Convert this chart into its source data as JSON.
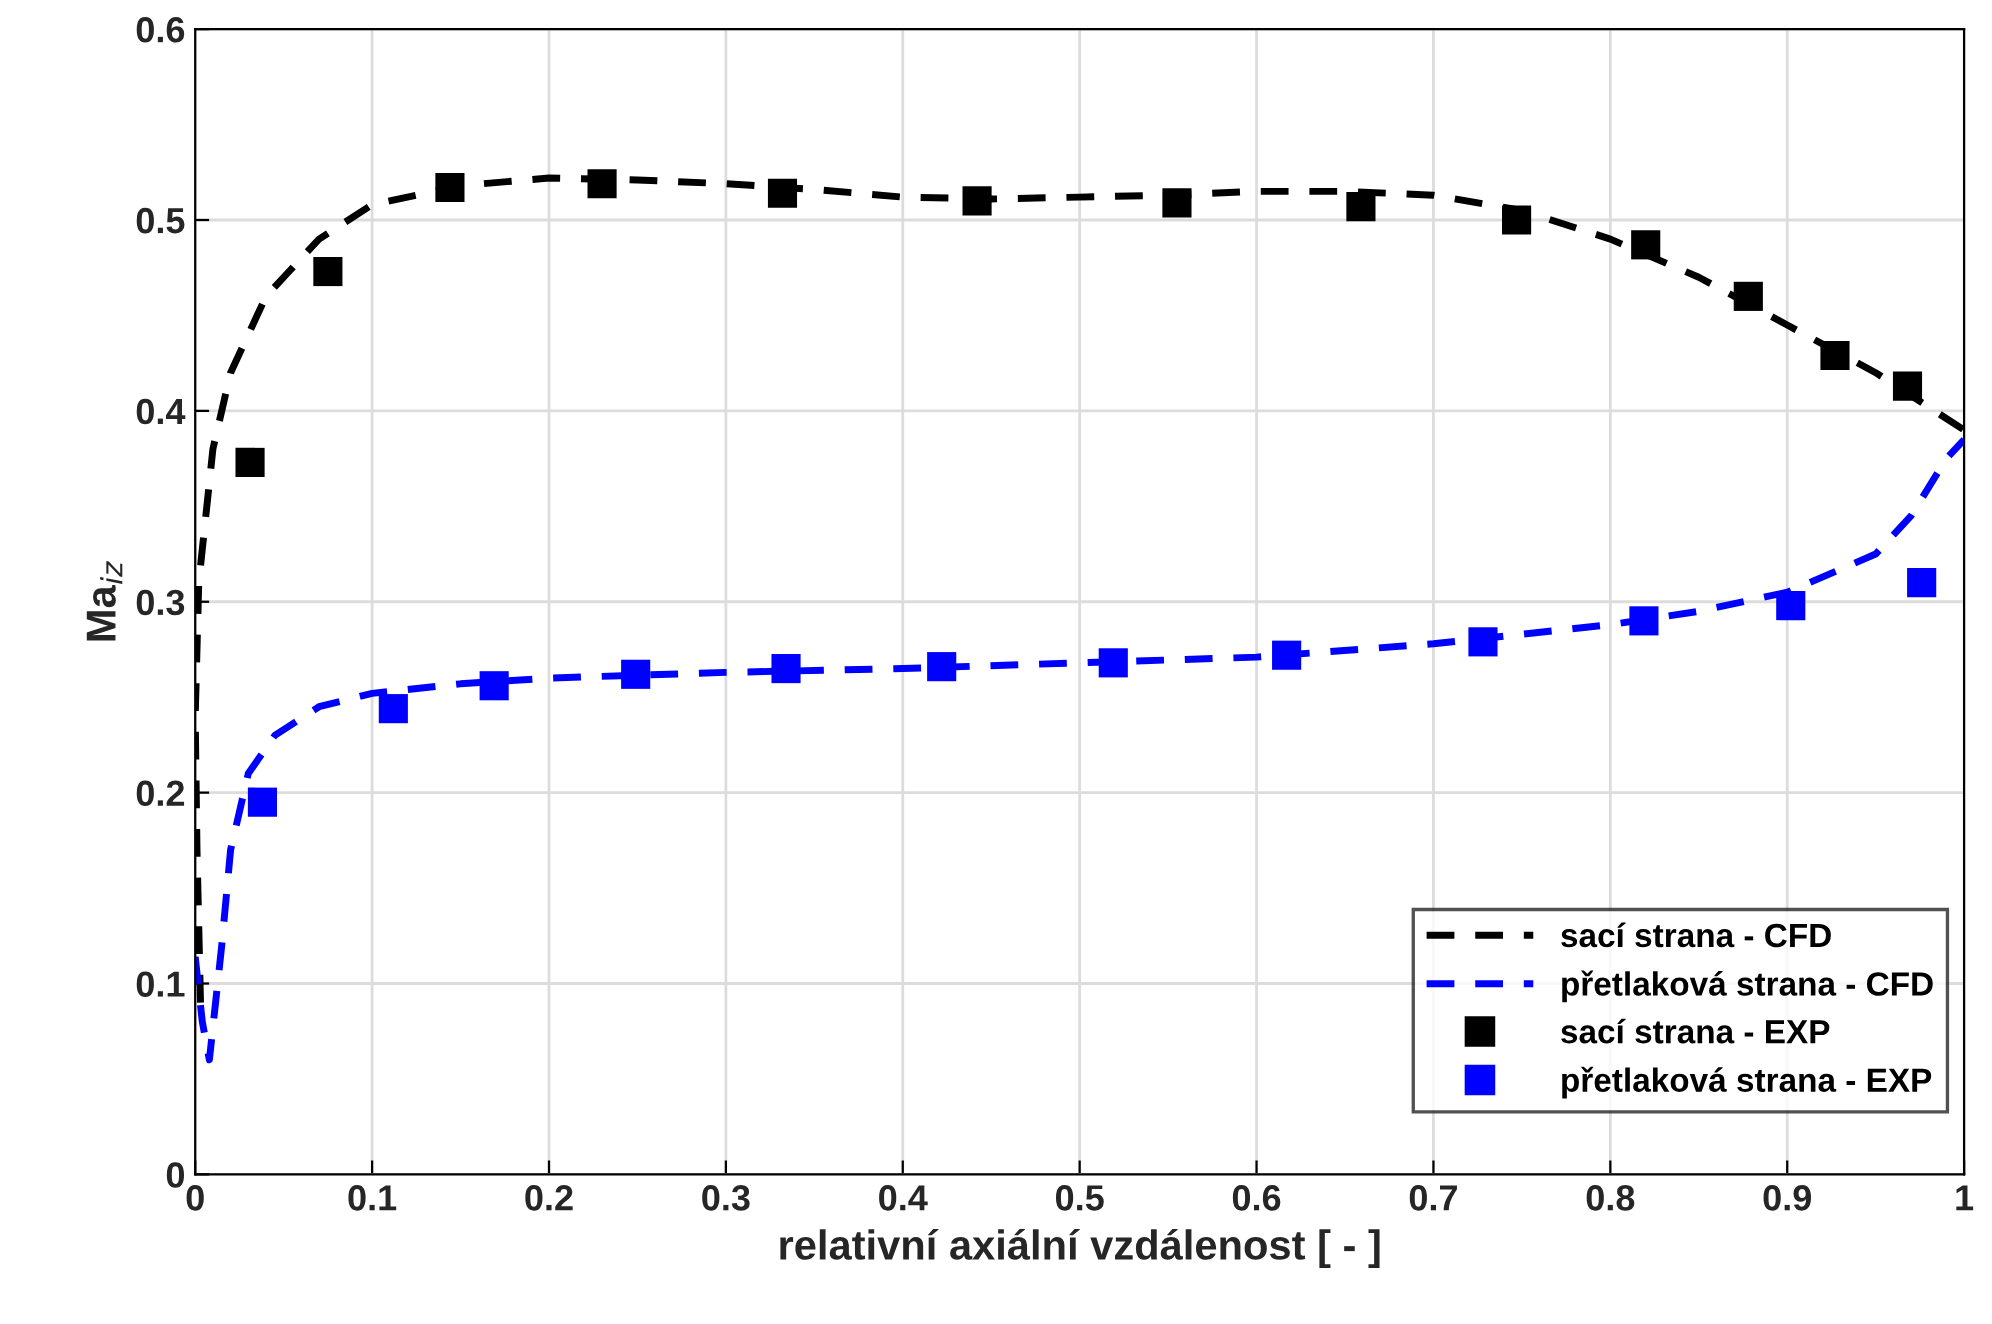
{
  "chart_data": {
    "type": "line",
    "xlabel": "relativní axiální vzdálenost [ - ]",
    "ylabel": "Ma$_{iz}$",
    "xlim": [
      0,
      1
    ],
    "ylim": [
      0,
      0.6
    ],
    "xticks": [
      0,
      0.1,
      0.2,
      0.3,
      0.4,
      0.5,
      0.6,
      0.7,
      0.8,
      0.9,
      1
    ],
    "yticks": [
      0,
      0.1,
      0.2,
      0.3,
      0.4,
      0.5,
      0.6
    ],
    "grid": true,
    "legend": "bottom right",
    "series": [
      {
        "name": "sací strana - CFD",
        "line_style": "dashed",
        "marker": "none",
        "color": "#000000",
        "x": [
          0.003,
          0.001,
          0.0,
          0.002,
          0.01,
          0.02,
          0.04,
          0.07,
          0.1,
          0.15,
          0.2,
          0.25,
          0.3,
          0.35,
          0.4,
          0.45,
          0.5,
          0.55,
          0.6,
          0.65,
          0.7,
          0.75,
          0.8,
          0.85,
          0.9,
          0.95,
          1.0
        ],
        "values": [
          0.09,
          0.17,
          0.24,
          0.31,
          0.38,
          0.42,
          0.46,
          0.49,
          0.508,
          0.518,
          0.522,
          0.521,
          0.519,
          0.516,
          0.512,
          0.511,
          0.512,
          0.513,
          0.515,
          0.515,
          0.513,
          0.505,
          0.49,
          0.47,
          0.445,
          0.42,
          0.39
        ]
      },
      {
        "name": "přetlaková strana - CFD",
        "line_style": "dashed",
        "marker": "none",
        "color": "#0000ff",
        "x": [
          0.0,
          0.004,
          0.008,
          0.015,
          0.02,
          0.03,
          0.045,
          0.07,
          0.1,
          0.15,
          0.2,
          0.3,
          0.4,
          0.5,
          0.6,
          0.7,
          0.8,
          0.85,
          0.9,
          0.95,
          0.97,
          0.99,
          1.0
        ],
        "values": [
          0.114,
          0.08,
          0.06,
          0.12,
          0.17,
          0.21,
          0.23,
          0.245,
          0.252,
          0.257,
          0.26,
          0.263,
          0.265,
          0.268,
          0.271,
          0.278,
          0.288,
          0.295,
          0.305,
          0.325,
          0.345,
          0.375,
          0.385
        ]
      },
      {
        "name": "sací strana - EXP",
        "type": "scatter",
        "marker": "square",
        "color": "#000000",
        "x": [
          0.031,
          0.075,
          0.144,
          0.23,
          0.332,
          0.442,
          0.555,
          0.659,
          0.747,
          0.82,
          0.878,
          0.927,
          0.968
        ],
        "values": [
          0.373,
          0.473,
          0.517,
          0.519,
          0.514,
          0.51,
          0.509,
          0.507,
          0.5,
          0.487,
          0.46,
          0.429,
          0.413
        ]
      },
      {
        "name": "přetlaková strana - EXP",
        "type": "scatter",
        "marker": "square",
        "color": "#0000ff",
        "x": [
          0.038,
          0.112,
          0.169,
          0.249,
          0.334,
          0.422,
          0.519,
          0.617,
          0.728,
          0.819,
          0.902,
          0.976
        ],
        "values": [
          0.195,
          0.244,
          0.256,
          0.262,
          0.265,
          0.266,
          0.268,
          0.272,
          0.279,
          0.29,
          0.298,
          0.31
        ]
      }
    ]
  }
}
